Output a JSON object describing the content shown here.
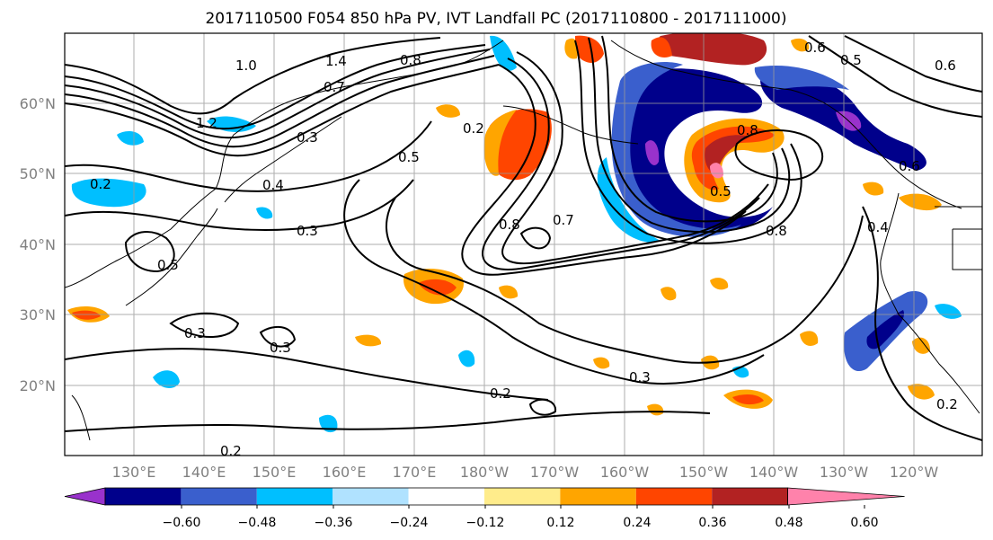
{
  "title": "2017110500 F054 850 hPa PV, IVT Landfall PC (2017110800 - 2017111000)",
  "map": {
    "lat_labels": [
      "60°N",
      "50°N",
      "40°N",
      "30°N",
      "20°N"
    ],
    "lon_labels": [
      "130°E",
      "140°E",
      "150°E",
      "160°E",
      "170°E",
      "180°W",
      "170°W",
      "160°W",
      "150°W",
      "140°W",
      "130°W",
      "120°W"
    ],
    "contour_labels": [
      "1.0",
      "1.4",
      "1.2",
      "0.8",
      "0.7",
      "0.3",
      "0.5",
      "0.2",
      "0.4",
      "0.3",
      "0.8",
      "0.7",
      "0.5",
      "0.8",
      "0.6",
      "0.5",
      "0.6",
      "0.8",
      "0.3",
      "0.3",
      "0.2",
      "0.3",
      "0.2",
      "0.2",
      "0.4",
      "0.6",
      "0.5",
      "0.2"
    ]
  },
  "colorbar": {
    "tick_labels": [
      "−0.60",
      "−0.48",
      "−0.36",
      "−0.24",
      "−0.12",
      "0.12",
      "0.24",
      "0.36",
      "0.48",
      "0.60"
    ],
    "colors": [
      "#9932CC",
      "#00008B",
      "#3A5FCD",
      "#00BFFF",
      "#B0E2FF",
      "#FFFFFF",
      "#FFEC8B",
      "#FFA500",
      "#FF4500",
      "#B22222",
      "#FF82AB"
    ]
  }
}
